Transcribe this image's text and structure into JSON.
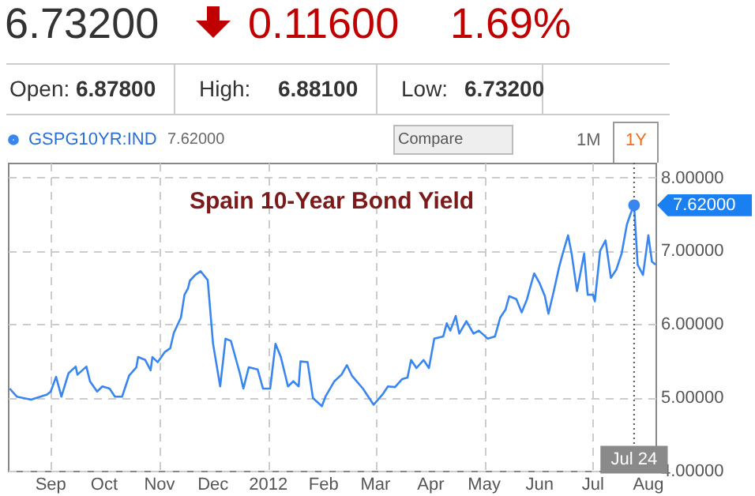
{
  "chart_data": {
    "type": "line",
    "title": "Spain 10-Year Bond Yield",
    "x": [
      "2011-08-09",
      "2011-08-13",
      "2011-08-21",
      "2011-08-30",
      "2011-09-01",
      "2011-09-04",
      "2011-09-07",
      "2011-09-11",
      "2011-09-15",
      "2011-09-16",
      "2011-09-21",
      "2011-09-23",
      "2011-09-27",
      "2011-09-30",
      "2011-10-04",
      "2011-10-07",
      "2011-10-11",
      "2011-10-15",
      "2011-10-19",
      "2011-10-20",
      "2011-10-24",
      "2011-10-27",
      "2011-10-28",
      "2011-10-31",
      "2011-11-04",
      "2011-11-07",
      "2011-11-09",
      "2011-11-13",
      "2011-11-15",
      "2011-11-17",
      "2011-11-18",
      "2011-11-21",
      "2011-11-24",
      "2011-11-28",
      "2011-12-01",
      "2011-12-05",
      "2011-12-08",
      "2011-12-11",
      "2011-12-16",
      "2011-12-18",
      "2011-12-21",
      "2011-12-26",
      "2011-12-29",
      "2012-01-02",
      "2012-01-05",
      "2012-01-08",
      "2012-01-12",
      "2012-01-15",
      "2012-01-18",
      "2012-01-19",
      "2012-01-23",
      "2012-01-26",
      "2012-01-31",
      "2012-02-02",
      "2012-02-07",
      "2012-02-11",
      "2012-02-14",
      "2012-02-17",
      "2012-02-23",
      "2012-02-29",
      "2012-03-05",
      "2012-03-08",
      "2012-03-12",
      "2012-03-16",
      "2012-03-19",
      "2012-03-21",
      "2012-03-24",
      "2012-03-28",
      "2012-03-31",
      "2012-04-03",
      "2012-04-08",
      "2012-04-10",
      "2012-04-12",
      "2012-04-15",
      "2012-04-17",
      "2012-04-21",
      "2012-04-25",
      "2012-04-28",
      "2012-05-03",
      "2012-05-07",
      "2012-05-10",
      "2012-05-13",
      "2012-05-15",
      "2012-05-19",
      "2012-05-22",
      "2012-05-25",
      "2012-05-27",
      "2012-05-29",
      "2012-06-01",
      "2012-06-04",
      "2012-06-06",
      "2012-06-09",
      "2012-06-12",
      "2012-06-14",
      "2012-06-17",
      "2012-06-19",
      "2012-06-22",
      "2012-06-26",
      "2012-06-28",
      "2012-07-01",
      "2012-07-02",
      "2012-07-05",
      "2012-07-08",
      "2012-07-11",
      "2012-07-14",
      "2012-07-17",
      "2012-07-20",
      "2012-07-22",
      "2012-07-24",
      "2012-07-26",
      "2012-07-29",
      "2012-08-01",
      "2012-08-03",
      "2012-08-05"
    ],
    "series": [
      {
        "name": "GSPG10YR:IND",
        "color": "#3a86f0",
        "values": [
          5.12,
          5.01,
          4.97,
          5.04,
          5.08,
          5.28,
          5.01,
          5.33,
          5.42,
          5.31,
          5.42,
          5.22,
          5.08,
          5.15,
          5.12,
          5.01,
          5.01,
          5.3,
          5.41,
          5.55,
          5.51,
          5.37,
          5.55,
          5.48,
          5.62,
          5.67,
          5.88,
          6.09,
          6.4,
          6.49,
          6.59,
          6.67,
          6.72,
          6.6,
          5.73,
          5.15,
          5.8,
          5.77,
          5.33,
          5.12,
          5.41,
          5.38,
          5.12,
          5.12,
          5.73,
          5.55,
          5.15,
          5.22,
          5.15,
          5.49,
          5.48,
          4.99,
          4.88,
          5.01,
          5.22,
          5.31,
          5.44,
          5.29,
          5.12,
          4.9,
          5.04,
          5.15,
          5.14,
          5.25,
          5.27,
          5.51,
          5.4,
          5.51,
          5.4,
          5.8,
          5.83,
          6.01,
          5.91,
          6.11,
          5.87,
          6.04,
          5.87,
          5.91,
          5.8,
          5.83,
          6.09,
          6.2,
          6.38,
          6.34,
          6.16,
          6.34,
          6.52,
          6.69,
          6.56,
          6.38,
          6.14,
          6.45,
          6.78,
          6.96,
          7.21,
          6.96,
          6.45,
          6.96,
          6.4,
          6.4,
          6.31,
          7.0,
          7.14,
          6.63,
          6.74,
          6.96,
          7.36,
          7.5,
          7.62,
          6.81,
          6.67,
          7.21,
          6.85,
          6.81
        ]
      }
    ],
    "xlim": [
      "2011-08-08",
      "2012-08-05"
    ],
    "xticks": [
      {
        "value": "2011-09-01",
        "label": "Sep"
      },
      {
        "value": "2011-10-01",
        "label": "Oct"
      },
      {
        "value": "2011-11-01",
        "label": "Nov"
      },
      {
        "value": "2011-12-01",
        "label": "Dec"
      },
      {
        "value": "2012-01-01",
        "label": "2012"
      },
      {
        "value": "2012-02-01",
        "label": "Feb"
      },
      {
        "value": "2012-03-01",
        "label": "Mar"
      },
      {
        "value": "2012-04-01",
        "label": "Apr"
      },
      {
        "value": "2012-05-01",
        "label": "May"
      },
      {
        "value": "2012-06-01",
        "label": "Jun"
      },
      {
        "value": "2012-07-01",
        "label": "Jul"
      },
      {
        "value": "2012-08-01",
        "label": "Aug"
      }
    ],
    "ylim": [
      4,
      8.2
    ],
    "yticks": [
      {
        "value": 4,
        "label": "4.00000"
      },
      {
        "value": 5,
        "label": "5.00000"
      },
      {
        "value": 6,
        "label": "6.00000"
      },
      {
        "value": 7,
        "label": "7.00000"
      },
      {
        "value": 8,
        "label": "8.00000"
      }
    ],
    "grid": true,
    "legend": "top left",
    "ref_lines": [
      {
        "axis": "x",
        "value": "2012-07-24",
        "label": "Jul 24",
        "line_style": "dotted",
        "color": "#555555"
      }
    ],
    "annotations": [
      "6.73200",
      "0.11600",
      "1.69%",
      "Open:",
      "6.87800",
      "High:",
      "6.88100",
      "Low:",
      "6.73200",
      "7.62000",
      "Compare",
      "1M",
      "1Y",
      {
        "text": "7.62000",
        "x": "2012-07-24",
        "y": 7.62
      }
    ]
  }
}
